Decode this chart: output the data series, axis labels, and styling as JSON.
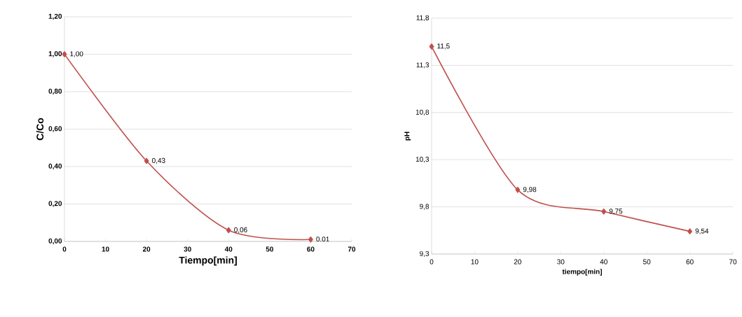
{
  "chart_data": [
    {
      "type": "line",
      "xlabel": "Tiempo[min]",
      "ylabel": "C/Co",
      "x": [
        0,
        20,
        40,
        60
      ],
      "xlim": [
        0,
        70
      ],
      "xticks": [
        0,
        10,
        20,
        30,
        40,
        50,
        60,
        70
      ],
      "ylim": [
        0,
        1.2
      ],
      "yticks": [
        {
          "value": 0,
          "label": "0,00"
        },
        {
          "value": 0.2,
          "label": "0,20"
        },
        {
          "value": 0.4,
          "label": "0,40"
        },
        {
          "value": 0.6,
          "label": "0,60"
        },
        {
          "value": 0.8,
          "label": "0,80"
        },
        {
          "value": 1.0,
          "label": "1,00"
        },
        {
          "value": 1.2,
          "label": "1,20"
        }
      ],
      "grid": "y",
      "marker": "diamond",
      "series": [
        {
          "color": "#c0504d",
          "values": [
            1.0,
            0.43,
            0.06,
            0.01
          ],
          "value_labels": [
            "1,00",
            "0,43",
            "0,06",
            "0,01"
          ]
        }
      ]
    },
    {
      "type": "line",
      "xlabel": "tiempo[min]",
      "ylabel": "pH",
      "x": [
        0,
        20,
        40,
        60
      ],
      "xlim": [
        0,
        70
      ],
      "xticks": [
        0,
        10,
        20,
        30,
        40,
        50,
        60,
        70
      ],
      "ylim": [
        9.3,
        11.8
      ],
      "yticks": [
        {
          "value": 9.3,
          "label": "9,3"
        },
        {
          "value": 9.8,
          "label": "9,8"
        },
        {
          "value": 10.3,
          "label": "10,3"
        },
        {
          "value": 10.8,
          "label": "10,8"
        },
        {
          "value": 11.3,
          "label": "11,3"
        },
        {
          "value": 11.8,
          "label": "11,8"
        }
      ],
      "grid": "y",
      "marker": "diamond",
      "series": [
        {
          "color": "#c0504d",
          "values": [
            11.5,
            9.98,
            9.75,
            9.54
          ],
          "value_labels": [
            "11,5",
            "9,98",
            "9,75",
            "9,54"
          ]
        }
      ]
    }
  ]
}
